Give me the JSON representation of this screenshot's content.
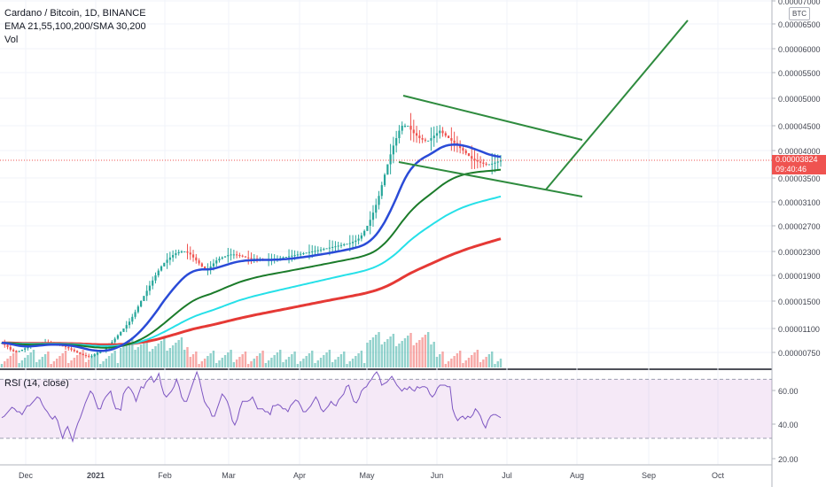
{
  "chart_data": {
    "type": "candlestick",
    "title": "Cardano / Bitcoin, 1D, BINANCE",
    "indicators_label": "EMA 21,55,100,200/SMA 30,200",
    "volume_label": "Vol",
    "quote_unit": "BTC",
    "last_price": "0.00003824",
    "countdown": "09:40:46",
    "price_axis_ticks": [
      "0.00007000",
      "0.00006500",
      "0.00006000",
      "0.00005500",
      "0.00005000",
      "0.00004500",
      "0.00004000",
      "0.00003500",
      "0.00003100",
      "0.00002700",
      "0.00002300",
      "0.00001900",
      "0.00001500",
      "0.00001100",
      "0.00000750"
    ],
    "time_axis_labels": [
      "Dec",
      "2021",
      "Feb",
      "Mar",
      "Apr",
      "May",
      "Jun",
      "Jul",
      "Aug",
      "Sep",
      "Oct"
    ],
    "rsi": {
      "label": "RSI (14, close)",
      "ticks": [
        "60.00",
        "40.00",
        "20.00"
      ],
      "band": [
        30,
        70
      ],
      "range": [
        15,
        75
      ],
      "values": [
        44,
        45,
        47,
        49,
        51,
        50,
        48,
        48,
        46,
        49,
        52,
        52,
        54,
        56,
        58,
        57,
        53,
        50,
        48,
        45,
        43,
        45,
        42,
        36,
        30,
        35,
        38,
        33,
        28,
        35,
        40,
        44,
        49,
        54,
        58,
        62,
        60,
        55,
        50,
        50,
        55,
        58,
        60,
        62,
        55,
        50,
        50,
        49,
        60,
        63,
        65,
        63,
        60,
        55,
        60,
        65,
        64,
        68,
        70,
        72,
        68,
        70,
        74,
        66,
        60,
        58,
        60,
        62,
        65,
        70,
        65,
        58,
        55,
        55,
        60,
        65,
        70,
        75,
        70,
        62,
        55,
        52,
        50,
        45,
        45,
        50,
        55,
        60,
        58,
        55,
        50,
        42,
        39,
        43,
        50,
        55,
        55,
        55,
        56,
        58,
        54,
        50,
        50,
        50,
        48,
        48,
        46,
        52,
        52,
        53,
        52,
        50,
        50,
        48,
        52,
        54,
        56,
        55,
        52,
        48,
        48,
        50,
        52,
        55,
        58,
        55,
        50,
        48,
        50,
        52,
        55,
        53,
        52,
        56,
        58,
        60,
        65,
        66,
        60,
        55,
        54,
        57,
        62,
        64,
        65,
        68,
        70,
        73,
        75,
        72,
        66,
        67,
        68,
        70,
        72,
        69,
        66,
        64,
        62,
        64,
        63,
        65,
        63,
        62,
        65,
        64,
        65,
        65,
        64,
        60,
        58,
        60,
        64,
        66,
        66,
        66,
        65,
        65,
        50,
        45,
        42,
        44,
        45,
        43,
        45,
        44,
        46,
        50,
        48,
        45,
        40,
        37,
        42,
        45,
        46,
        46,
        45,
        44
      ]
    },
    "close_values": [
      8.9e-06,
      8.6e-06,
      8.3e-06,
      7.9e-06,
      7.7e-06,
      7.6e-06,
      7.7e-06,
      7.9e-06,
      8.1e-06,
      8.3e-06,
      8.5e-06,
      8.7e-06,
      8.8e-06,
      8.9e-06,
      9e-06,
      9e-06,
      8.9e-06,
      8.8e-06,
      8.7e-06,
      8.6e-06,
      8.5e-06,
      8.4e-06,
      8.3e-06,
      8.1e-06,
      7.9e-06,
      7.7e-06,
      7.5e-06,
      7.3e-06,
      7.1e-06,
      7e-06,
      6.9e-06,
      7e-06,
      7.2e-06,
      7.4e-06,
      7.6e-06,
      7.8e-06,
      8.1e-06,
      8.5e-06,
      9e-06,
      9.5e-06,
      1e-05,
      1.05e-05,
      1.1e-05,
      1.15e-05,
      1.2e-05,
      1.27e-05,
      1.34e-05,
      1.42e-05,
      1.5e-05,
      1.58e-05,
      1.66e-05,
      1.74e-05,
      1.82e-05,
      1.9e-05,
      1.98e-05,
      2.05e-05,
      2.11e-05,
      2.16e-05,
      2.2e-05,
      2.24e-05,
      2.27e-05,
      2.29e-05,
      2.3e-05,
      2.3e-05,
      2.28e-05,
      2.25e-05,
      2.2e-05,
      2.15e-05,
      2.1e-05,
      2.05e-05,
      2e-05,
      2e-05,
      2.05e-05,
      2.1e-05,
      2.15e-05,
      2.18e-05,
      2.2e-05,
      2.22e-05,
      2.24e-05,
      2.25e-05,
      2.25e-05,
      2.24e-05,
      2.23e-05,
      2.22e-05,
      2.2e-05,
      2.19e-05,
      2.18e-05,
      2.18e-05,
      2.17e-05,
      2.17e-05,
      2.16e-05,
      2.16e-05,
      2.16e-05,
      2.17e-05,
      2.18e-05,
      2.18e-05,
      2.19e-05,
      2.2e-05,
      2.21e-05,
      2.22e-05,
      2.23e-05,
      2.24e-05,
      2.25e-05,
      2.26e-05,
      2.27e-05,
      2.28e-05,
      2.29e-05,
      2.3e-05,
      2.31e-05,
      2.32e-05,
      2.33e-05,
      2.34e-05,
      2.35e-05,
      2.36e-05,
      2.37e-05,
      2.38e-05,
      2.39e-05,
      2.4e-05,
      2.41e-05,
      2.42e-05,
      2.43e-05,
      2.45e-05,
      2.47e-05,
      2.5e-05,
      2.55e-05,
      2.62e-05,
      2.7e-05,
      2.8e-05,
      2.92e-05,
      3.05e-05,
      3.2e-05,
      3.38e-05,
      3.56e-05,
      3.75e-05,
      3.93e-05,
      4.1e-05,
      4.25e-05,
      4.4e-05,
      4.5e-05,
      4.5e-05,
      4.5e-05,
      4.42e-05,
      4.35e-05,
      4.3e-05,
      4.25e-05,
      4.22e-05,
      4.2e-05,
      4.2e-05,
      4.25e-05,
      4.3e-05,
      4.35e-05,
      4.4e-05,
      4.35e-05,
      4.3e-05,
      4.25e-05,
      4.2e-05,
      4.15e-05,
      4.1e-05,
      4.05e-05,
      4e-05,
      3.95e-05,
      3.9e-05,
      3.85e-05,
      3.82e-05,
      3.8e-05,
      3.78e-05,
      3.76e-05,
      3.75e-05,
      3.75e-05,
      3.76e-05,
      3.78e-05,
      3.8e-05,
      3.82e-05
    ]
  }
}
